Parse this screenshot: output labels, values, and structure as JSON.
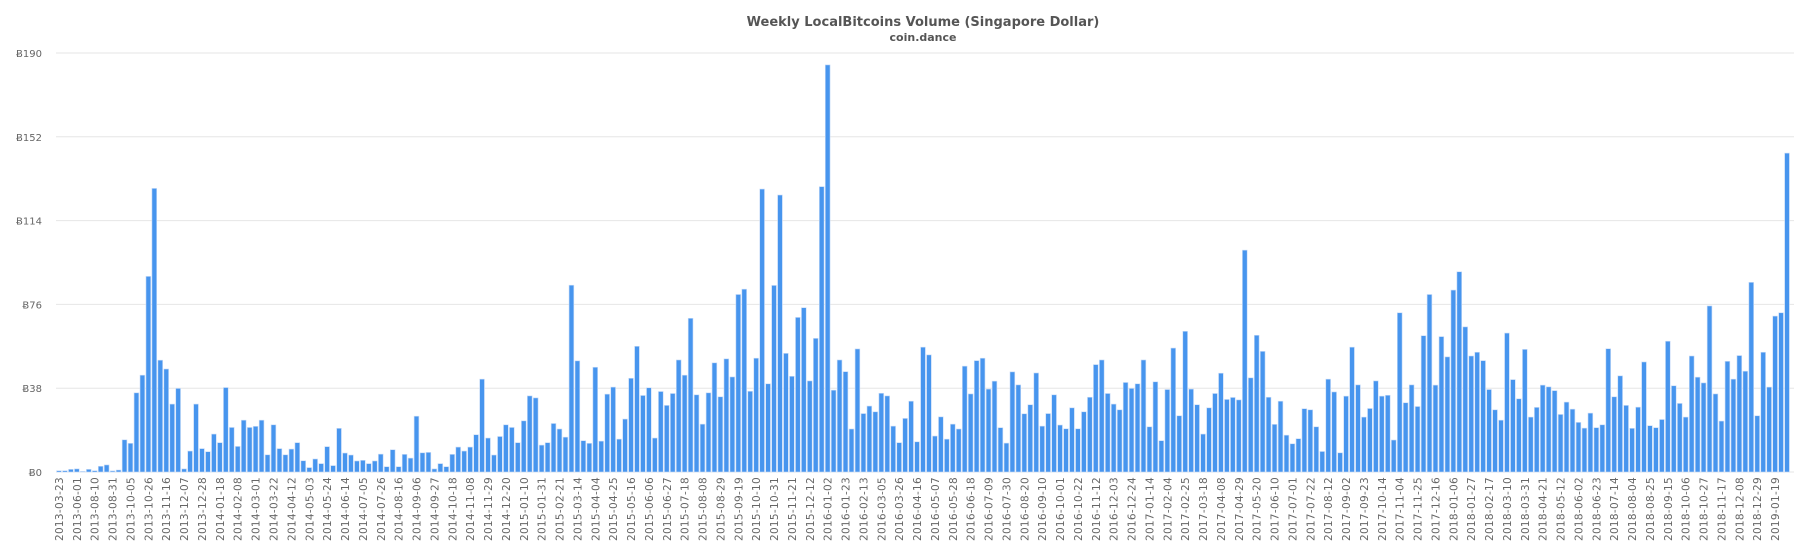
{
  "chart_data": {
    "type": "bar",
    "title": "Weekly LocalBitcoins Volume (Singapore Dollar)",
    "subtitle": "coin.dance",
    "xlabel": "",
    "ylabel": "",
    "ylim": [
      0,
      190
    ],
    "y_ticks": [
      0,
      38,
      76,
      114,
      152,
      190
    ],
    "y_tick_labels": [
      "Ƀ0",
      "Ƀ38",
      "Ƀ76",
      "Ƀ114",
      "Ƀ152",
      "Ƀ190"
    ],
    "grid": true,
    "bar_color": "#4795ee",
    "x_tick_every": 3,
    "x_tick_labels": [
      "2013-03-23",
      "2013-06-01",
      "2013-08-10",
      "2013-08-31",
      "2013-10-05",
      "2013-10-26",
      "2013-11-16",
      "2013-12-07",
      "2013-12-28",
      "2014-01-18",
      "2014-02-08",
      "2014-03-01",
      "2014-03-22",
      "2014-04-12",
      "2014-05-03",
      "2014-05-24",
      "2014-06-14",
      "2014-07-05",
      "2014-07-26",
      "2014-08-16",
      "2014-09-06",
      "2014-09-27",
      "2014-10-18",
      "2014-11-08",
      "2014-11-29",
      "2014-12-20",
      "2015-01-10",
      "2015-01-31",
      "2015-02-21",
      "2015-03-14",
      "2015-04-04",
      "2015-04-25",
      "2015-05-16",
      "2015-06-06",
      "2015-06-27",
      "2015-07-18",
      "2015-08-08",
      "2015-08-29",
      "2015-09-19",
      "2015-10-10",
      "2015-10-31",
      "2015-11-21",
      "2015-12-12",
      "2016-01-02",
      "2016-01-23",
      "2016-02-13",
      "2016-03-05",
      "2016-03-26",
      "2016-04-16",
      "2016-05-07",
      "2016-05-28",
      "2016-06-18",
      "2016-07-09",
      "2016-07-30",
      "2016-08-20",
      "2016-09-10",
      "2016-10-01",
      "2016-10-22",
      "2016-11-12",
      "2016-12-03",
      "2016-12-24",
      "2017-01-14",
      "2017-02-04",
      "2017-02-25",
      "2017-03-18",
      "2017-04-08",
      "2017-04-29",
      "2017-05-20",
      "2017-06-10",
      "2017-07-01",
      "2017-07-22",
      "2017-08-12",
      "2017-09-02",
      "2017-09-23",
      "2017-10-14",
      "2017-11-04",
      "2017-11-25",
      "2017-12-16",
      "2018-01-06",
      "2018-01-27",
      "2018-02-17",
      "2018-03-10",
      "2018-03-31",
      "2018-04-21",
      "2018-05-12",
      "2018-06-02",
      "2018-06-23",
      "2018-07-14",
      "2018-08-04",
      "2018-08-25",
      "2018-09-15",
      "2018-10-06",
      "2018-10-27",
      "2018-11-17",
      "2018-12-08",
      "2018-12-29",
      "2019-01-19"
    ],
    "values": [
      0.6,
      0.6,
      1.2,
      1.4,
      0.3,
      1.2,
      0.6,
      2.6,
      3.2,
      0.5,
      0.9,
      14.6,
      13.0,
      35.9,
      43.9,
      88.7,
      128.6,
      50.7,
      46.7,
      30.8,
      37.9,
      1.4,
      9.5,
      30.8,
      10.6,
      9.2,
      17.2,
      13.3,
      38.3,
      20.2,
      11.6,
      23.5,
      20.2,
      20.7,
      23.5,
      7.8,
      21.4,
      10.6,
      7.8,
      10.4,
      13.3,
      5.1,
      2.0,
      5.9,
      3.8,
      11.5,
      2.9,
      19.8,
      8.6,
      7.7,
      5.0,
      5.3,
      3.8,
      5.0,
      8.1,
      2.4,
      10.1,
      2.4,
      8.0,
      6.3,
      25.3,
      8.7,
      8.9,
      1.4,
      3.8,
      2.4,
      8.0,
      11.3,
      9.5,
      11.3,
      16.9,
      42.1,
      15.4,
      7.7,
      16.1,
      21.4,
      20.2,
      13.3,
      23.2,
      34.5,
      33.6,
      12.2,
      13.3,
      22.0,
      19.5,
      15.8,
      84.7,
      50.4,
      14.2,
      13.0,
      47.5,
      14.0,
      35.3,
      38.5,
      14.9,
      24.0,
      42.5,
      57.0,
      34.7,
      38.2,
      15.4,
      36.5,
      30.2,
      35.6,
      50.8,
      43.9,
      69.7,
      35.0,
      21.7,
      35.9,
      49.5,
      34.1,
      51.3,
      43.1,
      80.5,
      82.9,
      36.6,
      51.6,
      128.3,
      40.0,
      84.6,
      125.6,
      53.8,
      43.4,
      70.1,
      74.5,
      41.3,
      60.6,
      129.4,
      184.6,
      37.1,
      50.8,
      45.5,
      19.5,
      55.8,
      26.5,
      29.9,
      27.3,
      35.7,
      34.5,
      20.8,
      13.3,
      24.3,
      32.1,
      13.7,
      56.6,
      53.1,
      16.3,
      25.0,
      14.9,
      21.7,
      19.5,
      48.0,
      35.4,
      50.5,
      51.6,
      37.6,
      41.2,
      20.1,
      13.1,
      45.4,
      39.5,
      26.4,
      30.5,
      44.9,
      20.8,
      26.5,
      35.0,
      21.3,
      19.6,
      29.1,
      19.6,
      27.3,
      33.9,
      48.7,
      50.8,
      35.6,
      30.8,
      28.2,
      40.6,
      37.9,
      40.0,
      50.8,
      20.5,
      40.9,
      14.2,
      37.4,
      56.2,
      25.5,
      63.8,
      37.6,
      30.5,
      17.2,
      29.1,
      35.6,
      44.8,
      32.9,
      33.8,
      32.7,
      100.6,
      42.7,
      62.0,
      54.7,
      33.9,
      21.6,
      32.1,
      16.7,
      12.8,
      15.1,
      28.7,
      28.2,
      20.5,
      9.3,
      42.1,
      36.3,
      8.7,
      34.4,
      56.6,
      39.5,
      24.9,
      28.8,
      41.3,
      34.4,
      34.8,
      14.5,
      72.2,
      31.4,
      39.5,
      29.7,
      61.8,
      80.5,
      39.4,
      61.4,
      52.2,
      82.5,
      90.8,
      65.8,
      52.6,
      54.3,
      50.5,
      37.4,
      28.2,
      23.5,
      63.0,
      41.9,
      33.2,
      55.6,
      24.9,
      29.3,
      39.4,
      38.6,
      36.9,
      26.1,
      31.7,
      28.5,
      22.5,
      19.9,
      26.7,
      20.1,
      21.4,
      55.9,
      34.1,
      43.6,
      30.2,
      19.8,
      29.4,
      49.9,
      21.0,
      20.1,
      23.8,
      59.3,
      39.1,
      31.1,
      24.9,
      52.6,
      43.0,
      40.4,
      75.3,
      35.4,
      23.1,
      50.2,
      42.1,
      52.8,
      45.7,
      86.0,
      25.5,
      54.3,
      38.5,
      70.7,
      72.2,
      144.6
    ]
  }
}
